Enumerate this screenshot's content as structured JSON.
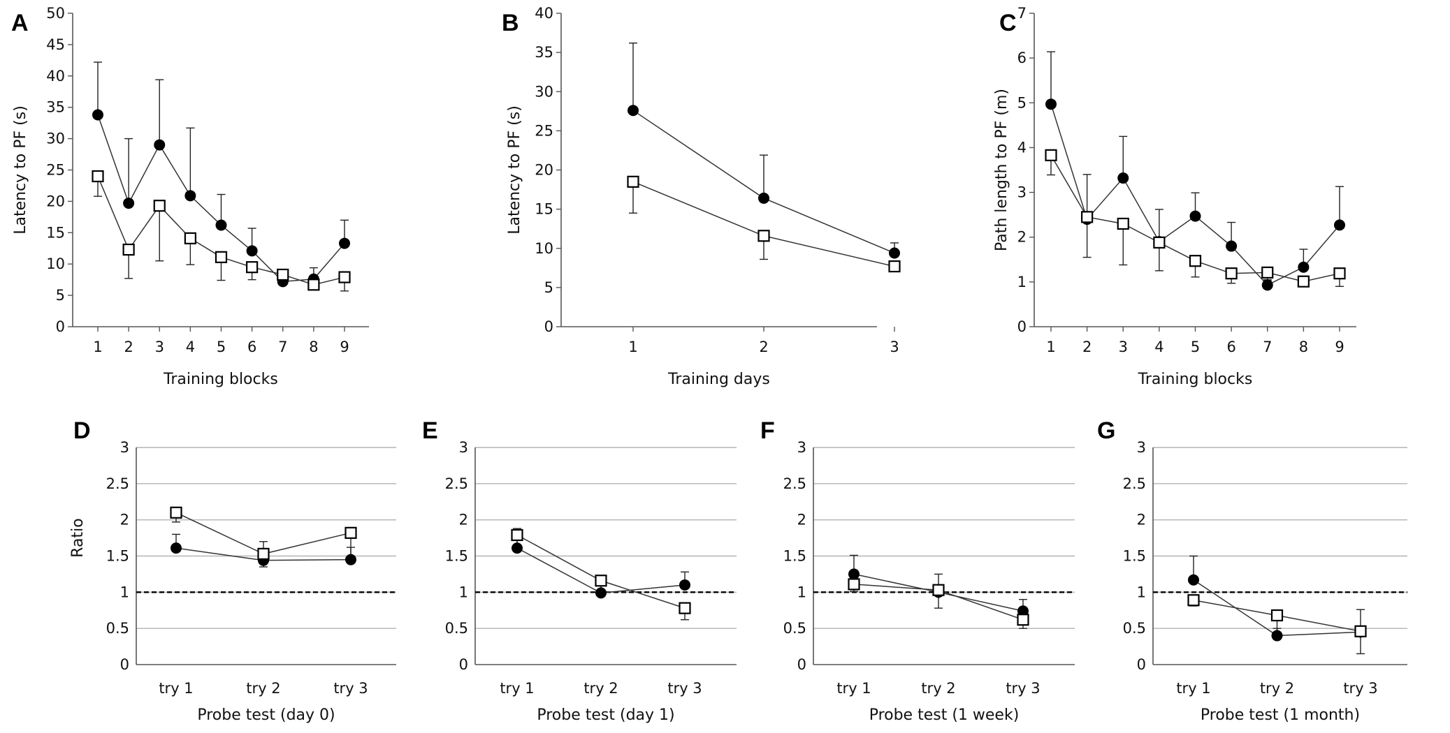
{
  "figure_title": "",
  "colors": {
    "axis": "#555555",
    "grid": "#b3b3b3",
    "series_line": "#333333",
    "marker_filled": "#000000",
    "marker_open_fill": "#ffffff",
    "reference_line": "#000000"
  },
  "chart_data": [
    {
      "panel": "A",
      "type": "line",
      "title": "",
      "xlabel": "Training blocks",
      "ylabel": "Latency to PF (s)",
      "categories": [
        "1",
        "2",
        "3",
        "4",
        "5",
        "6",
        "7",
        "8",
        "9"
      ],
      "ylim": [
        0,
        50
      ],
      "yticks": [
        0,
        5,
        10,
        15,
        20,
        25,
        30,
        35,
        40,
        45,
        50
      ],
      "y_tick_labels": [
        "0",
        "5",
        "10",
        "15",
        "20",
        "25",
        "30",
        "35",
        "40",
        "45",
        "50"
      ],
      "grid": false,
      "series": [
        {
          "name": "filled circles",
          "marker": "filled-circle",
          "values": [
            33.8,
            19.7,
            29.0,
            20.9,
            16.2,
            12.1,
            7.2,
            7.6,
            13.3
          ],
          "errors": [
            8.4,
            10.3,
            10.4,
            10.8,
            4.9,
            3.6,
            0.9,
            1.8,
            3.7
          ]
        },
        {
          "name": "open squares",
          "marker": "open-square",
          "values": [
            24.0,
            12.3,
            19.3,
            14.1,
            11.1,
            9.5,
            8.3,
            6.7,
            7.9
          ],
          "errors": [
            3.2,
            4.6,
            8.8,
            4.2,
            3.7,
            2.0,
            1.1,
            0.8,
            2.2
          ]
        }
      ]
    },
    {
      "panel": "B",
      "type": "line",
      "title": "",
      "xlabel": "Training days",
      "ylabel": "Latency to PF (s)",
      "categories": [
        "1",
        "2",
        "3"
      ],
      "ylim": [
        0,
        40
      ],
      "yticks": [
        0,
        5,
        10,
        15,
        20,
        25,
        30,
        35,
        40
      ],
      "y_tick_labels": [
        "0",
        "5",
        "10",
        "15",
        "20",
        "25",
        "30",
        "35",
        "40"
      ],
      "grid": false,
      "series": [
        {
          "name": "filled circles",
          "marker": "filled-circle",
          "values": [
            27.6,
            16.4,
            9.4
          ],
          "errors": [
            8.6,
            5.5,
            1.3
          ]
        },
        {
          "name": "open squares",
          "marker": "open-square",
          "values": [
            18.5,
            11.6,
            7.7
          ],
          "errors": [
            4.0,
            3.0,
            0.6
          ]
        }
      ]
    },
    {
      "panel": "C",
      "type": "line",
      "title": "",
      "xlabel": "Training blocks",
      "ylabel": "Path length to PF (m)",
      "categories": [
        "1",
        "2",
        "3",
        "4",
        "5",
        "6",
        "7",
        "8",
        "9"
      ],
      "ylim": [
        0,
        7
      ],
      "yticks": [
        0,
        1,
        2,
        3,
        4,
        5,
        6,
        7
      ],
      "y_tick_labels": [
        "0",
        "1",
        "2",
        "3",
        "4",
        "5",
        "6",
        "7"
      ],
      "grid": false,
      "series": [
        {
          "name": "filled circles",
          "marker": "filled-circle",
          "values": [
            4.97,
            2.4,
            3.32,
            1.9,
            2.47,
            1.8,
            0.93,
            1.33,
            2.27
          ],
          "errors": [
            1.17,
            1.0,
            0.93,
            0.72,
            0.52,
            0.53,
            0.12,
            0.4,
            0.86
          ]
        },
        {
          "name": "open squares",
          "marker": "open-square",
          "values": [
            3.83,
            2.45,
            2.3,
            1.88,
            1.47,
            1.19,
            1.21,
            1.01,
            1.19
          ],
          "errors": [
            0.44,
            0.9,
            0.92,
            0.63,
            0.36,
            0.22,
            0.18,
            0.1,
            0.29
          ]
        }
      ]
    },
    {
      "panel": "D",
      "type": "line",
      "title": "",
      "xlabel": "Probe test (day 0)",
      "ylabel": "Ratio",
      "categories": [
        "try 1",
        "try 2",
        "try 3"
      ],
      "ylim": [
        0,
        3
      ],
      "yticks": [
        0,
        0.5,
        1,
        1.5,
        2,
        2.5,
        3
      ],
      "y_tick_labels": [
        "0",
        "0.5",
        "1",
        "1.5",
        "2",
        "2.5",
        "3"
      ],
      "grid": true,
      "reference_line": 1,
      "series": [
        {
          "name": "filled circles",
          "marker": "filled-circle",
          "values": [
            1.61,
            1.44,
            1.45
          ],
          "errors": [
            0.19,
            0.26,
            0.17
          ]
        },
        {
          "name": "open squares",
          "marker": "open-square",
          "values": [
            2.1,
            1.53,
            1.82
          ],
          "errors": [
            0.13,
            0.18,
            0.39
          ]
        }
      ]
    },
    {
      "panel": "E",
      "type": "line",
      "title": "",
      "xlabel": "Probe test (day 1)",
      "ylabel": "",
      "categories": [
        "try 1",
        "try 2",
        "try 3"
      ],
      "ylim": [
        0,
        3
      ],
      "yticks": [
        0,
        0.5,
        1,
        1.5,
        2,
        2.5,
        3
      ],
      "y_tick_labels": [
        "0",
        "0.5",
        "1",
        "1.5",
        "2",
        "2.5",
        "3"
      ],
      "grid": true,
      "reference_line": 1,
      "series": [
        {
          "name": "filled circles",
          "marker": "filled-circle",
          "values": [
            1.61,
            0.99,
            1.1
          ],
          "errors": [
            0.27,
            0.18,
            0.18
          ]
        },
        {
          "name": "open squares",
          "marker": "open-square",
          "values": [
            1.79,
            1.16,
            0.78
          ],
          "errors": [
            0.14,
            0.15,
            0.16
          ]
        }
      ]
    },
    {
      "panel": "F",
      "type": "line",
      "title": "",
      "xlabel": "Probe test (1 week)",
      "ylabel": "",
      "categories": [
        "try 1",
        "try 2",
        "try 3"
      ],
      "ylim": [
        0,
        3
      ],
      "yticks": [
        0,
        0.5,
        1,
        1.5,
        2,
        2.5,
        3
      ],
      "y_tick_labels": [
        "0",
        "0.5",
        "1",
        "1.5",
        "2",
        "2.5",
        "3"
      ],
      "grid": true,
      "reference_line": 1,
      "series": [
        {
          "name": "filled circles",
          "marker": "filled-circle",
          "values": [
            1.25,
            1.0,
            0.74
          ],
          "errors": [
            0.26,
            0.25,
            0.16
          ]
        },
        {
          "name": "open squares",
          "marker": "open-square",
          "values": [
            1.11,
            1.03,
            0.62
          ],
          "errors": [
            0.1,
            0.25,
            0.12
          ]
        }
      ]
    },
    {
      "panel": "G",
      "type": "line",
      "title": "",
      "xlabel": "Probe test (1 month)",
      "ylabel": "",
      "categories": [
        "try 1",
        "try 2",
        "try 3"
      ],
      "ylim": [
        0,
        3
      ],
      "yticks": [
        0,
        0.5,
        1,
        1.5,
        2,
        2.5,
        3
      ],
      "y_tick_labels": [
        "0",
        "0.5",
        "1",
        "1.5",
        "2",
        "2.5",
        "3"
      ],
      "grid": true,
      "reference_line": 1,
      "series": [
        {
          "name": "filled circles",
          "marker": "filled-circle",
          "values": [
            1.17,
            0.4,
            0.45
          ],
          "errors": [
            0.33,
            0.1,
            0.31
          ]
        },
        {
          "name": "open squares",
          "marker": "open-square",
          "values": [
            0.89,
            0.68,
            0.46
          ],
          "errors": [
            0.08,
            0.3,
            0.31
          ]
        }
      ]
    }
  ]
}
